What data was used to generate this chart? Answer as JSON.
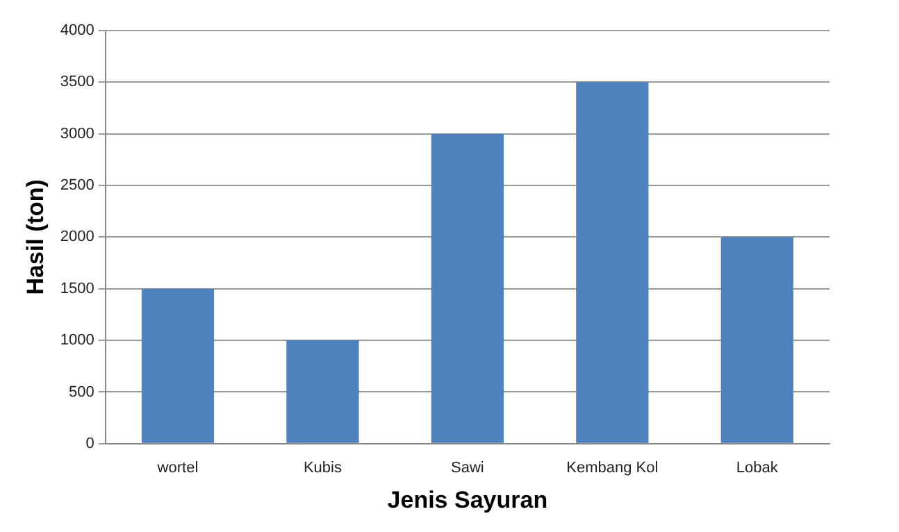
{
  "chart_data": {
    "type": "bar",
    "xlabel": "Jenis Sayuran",
    "ylabel": "Hasil (ton)",
    "categories": [
      "wortel",
      "Kubis",
      "Sawi",
      "Kembang Kol",
      "Lobak"
    ],
    "values": [
      1500,
      1000,
      3000,
      3500,
      2000
    ],
    "color": "#4f81bd",
    "ylim": [
      0,
      4000
    ],
    "yticks": [
      0,
      500,
      1000,
      1500,
      2000,
      2500,
      3000,
      3500,
      4000
    ],
    "grid": "y",
    "legend": false
  }
}
